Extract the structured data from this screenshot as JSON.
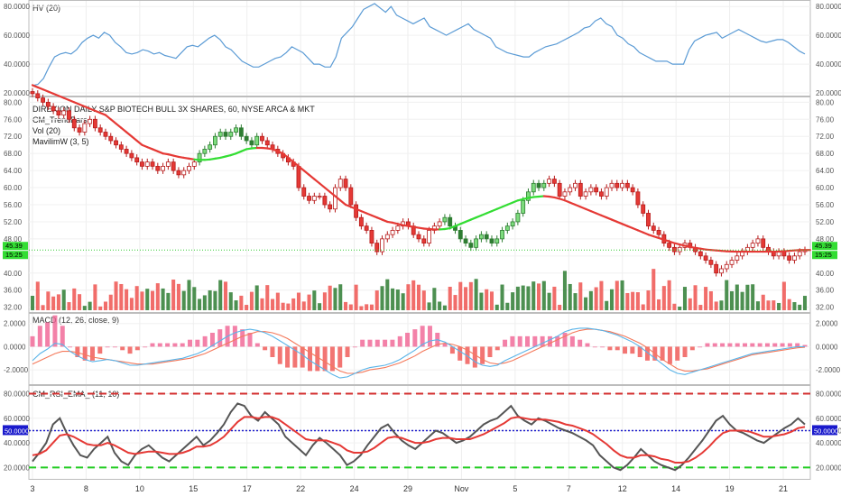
{
  "chart_data": [
    {
      "type": "line",
      "panel": "hv",
      "title": "HV (20)",
      "y_ticks": [
        "80.0000",
        "60.0000",
        "40.0000",
        "20.0000"
      ],
      "y_tick_values": [
        80,
        60,
        40,
        20
      ],
      "ylim": [
        20,
        82
      ],
      "colors": {
        "line": "#5b9bd5"
      },
      "series": [
        {
          "values": [
            25,
            26,
            30,
            38,
            45,
            47,
            48,
            47,
            50,
            55,
            58,
            60,
            58,
            62,
            60,
            55,
            52,
            48,
            47,
            48,
            50,
            49,
            47,
            48,
            46,
            45,
            44,
            48,
            52,
            53,
            52,
            55,
            58,
            60,
            57,
            52,
            50,
            46,
            42,
            40,
            38,
            38,
            40,
            42,
            44,
            45,
            48,
            52,
            50,
            48,
            44,
            40,
            40,
            38,
            38,
            45,
            58,
            62,
            66,
            72,
            78,
            80,
            82,
            79,
            76,
            80,
            74,
            72,
            70,
            68,
            70,
            72,
            66,
            64,
            62,
            60,
            62,
            64,
            66,
            68,
            64,
            62,
            60,
            58,
            52,
            50,
            48,
            47,
            46,
            45,
            45,
            48,
            50,
            52,
            53,
            54,
            56,
            58,
            60,
            62,
            65,
            66,
            70,
            72,
            68,
            66,
            60,
            58,
            54,
            52,
            48,
            46,
            44,
            42,
            42,
            42,
            40,
            40,
            40,
            50,
            56,
            58,
            60,
            61,
            62,
            58,
            60,
            62,
            64,
            62,
            60,
            58,
            56,
            55,
            56,
            57,
            57,
            55,
            52,
            49,
            47
          ]
        }
      ]
    },
    {
      "type": "candlestick",
      "panel": "price",
      "title": "DIREXION DAILY S&P BIOTECH BULL 3X SHARES, 60, NYSE ARCA & MKT",
      "indicators": [
        "CM_TrendBars",
        "Vol (20)",
        "MavilimW (3, 5)"
      ],
      "y_ticks": [
        "80.00",
        "76.00",
        "72.00",
        "68.00",
        "64.00",
        "60.00",
        "56.00",
        "52.00",
        "48.00",
        "44.00",
        "40.00",
        "36.00",
        "32.00"
      ],
      "y_tick_values": [
        80,
        76,
        72,
        68,
        64,
        60,
        56,
        52,
        48,
        44,
        40,
        36,
        32
      ],
      "ylim": [
        31.5,
        80.5
      ],
      "price_badge": {
        "value": "45.39",
        "time": "15:25",
        "y": 45.39
      },
      "colors": {
        "up": "#2e7d32",
        "down": "#e53935",
        "ma_up": "#33dd33",
        "ma_down": "#e53935",
        "vol_up": "#2e7d32",
        "vol_down": "#ef5350"
      },
      "close": [
        82,
        81,
        80,
        79,
        78,
        77,
        78,
        76,
        74,
        73,
        75,
        76,
        74,
        73,
        72,
        71,
        70,
        69,
        68,
        67,
        66,
        65,
        66,
        65,
        64,
        65,
        66,
        64,
        63,
        64,
        65,
        66,
        68,
        69,
        70,
        72,
        73,
        72,
        73,
        74,
        72,
        71,
        70,
        72,
        71,
        70,
        69,
        68,
        67,
        66,
        65,
        60,
        58,
        57,
        58,
        58,
        56,
        55,
        60,
        62,
        60,
        56,
        53,
        51,
        50,
        47,
        45,
        48,
        49,
        50,
        51,
        52,
        51,
        49,
        48,
        47,
        50,
        51,
        52,
        53,
        51,
        50,
        48,
        47,
        46,
        48,
        49,
        48,
        47,
        48,
        50,
        51,
        52,
        54,
        57,
        59,
        61,
        60,
        61,
        62,
        61,
        58,
        59,
        60,
        61,
        58,
        59,
        60,
        59,
        58,
        60,
        61,
        60,
        61,
        60,
        59,
        56,
        54,
        51,
        50,
        49,
        47,
        46,
        45,
        46,
        47,
        46,
        45,
        44,
        43,
        42,
        40,
        41,
        42,
        43,
        44,
        45,
        46,
        47,
        48,
        46,
        45,
        44,
        45,
        44,
        43,
        44,
        45,
        45.39
      ],
      "ma": [
        84,
        83.5,
        83,
        82.5,
        82,
        81.5,
        81,
        80.5,
        80,
        79.5,
        79,
        78.5,
        78,
        77.5,
        77,
        76,
        75,
        74,
        73,
        72,
        71,
        70,
        69.5,
        69,
        68.5,
        68,
        67.8,
        67.5,
        67.2,
        67,
        66.8,
        66.6,
        66.5,
        66.5,
        66.6,
        66.8,
        67,
        67.3,
        67.6,
        68,
        68.5,
        69,
        69.2,
        69.3,
        69.3,
        69.2,
        69,
        68.5,
        68,
        67,
        66,
        65,
        64,
        63,
        62,
        61,
        60,
        59,
        58,
        57,
        56,
        55.5,
        55,
        54.5,
        54,
        53.5,
        53,
        52.5,
        52,
        51.8,
        51.5,
        51.2,
        51,
        50.8,
        50.6,
        50.4,
        50.3,
        50.2,
        50.2,
        50.3,
        50.5,
        51,
        51.5,
        52,
        52.5,
        53,
        53.5,
        54,
        54.5,
        55,
        55.5,
        56,
        56.5,
        57,
        57.3,
        57.6,
        57.8,
        57.9,
        58,
        57.9,
        57.7,
        57.4,
        57,
        56.5,
        56,
        55.5,
        55,
        54.5,
        54,
        53.5,
        53,
        52.5,
        52,
        51.5,
        51,
        50.5,
        50,
        49.5,
        49,
        48.6,
        48.2,
        47.8,
        47.4,
        47,
        46.7,
        46.4,
        46.1,
        45.9,
        45.7,
        45.5,
        45.4,
        45.3,
        45.2,
        45.1,
        45.05,
        45,
        45,
        45,
        45,
        45,
        45,
        45,
        45,
        45.05,
        45.1,
        45.2,
        45.3,
        45.39,
        45.39,
        45.39
      ],
      "ma_trend": [
        "d",
        "d",
        "d",
        "d",
        "d",
        "d",
        "d",
        "d",
        "d",
        "d",
        "d",
        "d",
        "d",
        "d",
        "d",
        "d",
        "d",
        "d",
        "d",
        "d",
        "d",
        "d",
        "d",
        "d",
        "d",
        "d",
        "d",
        "d",
        "d",
        "d",
        "d",
        "d",
        "u",
        "u",
        "u",
        "u",
        "u",
        "u",
        "u",
        "u",
        "u",
        "u",
        "u",
        "u",
        "d",
        "d",
        "d",
        "d",
        "d",
        "d",
        "d",
        "d",
        "d",
        "d",
        "d",
        "d",
        "d",
        "d",
        "d",
        "d",
        "d",
        "d",
        "d",
        "d",
        "d",
        "d",
        "d",
        "d",
        "d",
        "d",
        "d",
        "d",
        "d",
        "d",
        "d",
        "d",
        "d",
        "d",
        "d",
        "u",
        "u",
        "u",
        "u",
        "u",
        "u",
        "u",
        "u",
        "u",
        "u",
        "u",
        "u",
        "u",
        "u",
        "u",
        "u",
        "u",
        "u",
        "u",
        "u",
        "d",
        "d",
        "d",
        "d",
        "d",
        "d",
        "d",
        "d",
        "d",
        "d",
        "d",
        "d",
        "d",
        "d",
        "d",
        "d",
        "d",
        "d",
        "d",
        "d",
        "d",
        "d",
        "d",
        "d",
        "d",
        "d",
        "d",
        "d",
        "d",
        "d",
        "d",
        "d",
        "d",
        "d",
        "d",
        "d",
        "d",
        "d",
        "d",
        "d",
        "d",
        "d",
        "d",
        "d",
        "d",
        "d",
        "d",
        "d",
        "d",
        "d"
      ],
      "volume_max": 100
    },
    {
      "type": "histogram+line",
      "panel": "macd",
      "title": "MACD (12, 26, close, 9)",
      "y_ticks": [
        "2.0000",
        "0.0000",
        "-2.0000"
      ],
      "y_tick_values": [
        2,
        0,
        -2
      ],
      "ylim": [
        -3,
        2.6
      ],
      "colors": {
        "macd": "#5ab4e8",
        "signal": "#f4795b",
        "hist_pos": "#f06292",
        "hist_neg": "#ef5350"
      },
      "series": [
        {
          "values": [
            -1.2,
            -0.6,
            -0.2,
            0.3,
            0.2,
            -0.4,
            -0.8,
            -1.1,
            -1.3,
            -1.2,
            -1.1,
            -1.2,
            -1.4,
            -1.6,
            -1.6,
            -1.5,
            -1.4,
            -1.3,
            -1.2,
            -1.1,
            -1.0,
            -0.8,
            -0.6,
            -0.3,
            0.1,
            0.5,
            0.9,
            1.2,
            1.4,
            1.5,
            1.4,
            1.2,
            0.9,
            0.5,
            0.1,
            -0.3,
            -0.7,
            -1.2,
            -1.6,
            -2.0,
            -2.4,
            -2.7,
            -2.6,
            -2.3,
            -2.0,
            -1.8,
            -1.7,
            -1.6,
            -1.4,
            -1.1,
            -0.7,
            -0.3,
            0.2,
            0.5,
            0.6,
            0.4,
            0.0,
            -0.4,
            -0.8,
            -1.3,
            -1.6,
            -1.7,
            -1.6,
            -1.2,
            -0.9,
            -0.6,
            -0.3,
            0.0,
            0.3,
            0.6,
            0.9,
            1.3,
            1.5,
            1.6,
            1.6,
            1.5,
            1.4,
            1.2,
            1.0,
            0.7,
            0.4,
            0.0,
            -0.5,
            -1.0,
            -1.5,
            -2.0,
            -2.3,
            -2.4,
            -2.2,
            -2.0,
            -1.8,
            -1.6,
            -1.4,
            -1.2,
            -1.0,
            -0.8,
            -0.6,
            -0.5,
            -0.4,
            -0.3,
            -0.2,
            -0.1,
            0.0,
            0.0
          ]
        },
        {
          "values": [
            -1.5,
            -1.2,
            -0.9,
            -0.6,
            -0.4,
            -0.4,
            -0.5,
            -0.7,
            -0.9,
            -1.0,
            -1.1,
            -1.2,
            -1.3,
            -1.4,
            -1.5,
            -1.5,
            -1.5,
            -1.4,
            -1.3,
            -1.2,
            -1.1,
            -1.0,
            -0.8,
            -0.6,
            -0.3,
            0.0,
            0.3,
            0.6,
            0.9,
            1.1,
            1.3,
            1.3,
            1.2,
            1.0,
            0.7,
            0.3,
            -0.1,
            -0.5,
            -0.9,
            -1.3,
            -1.7,
            -2.1,
            -2.3,
            -2.3,
            -2.2,
            -2.0,
            -1.9,
            -1.8,
            -1.6,
            -1.4,
            -1.1,
            -0.8,
            -0.4,
            -0.1,
            0.2,
            0.3,
            0.2,
            0.0,
            -0.3,
            -0.7,
            -1.1,
            -1.4,
            -1.5,
            -1.4,
            -1.2,
            -0.9,
            -0.6,
            -0.3,
            0.0,
            0.3,
            0.6,
            0.9,
            1.2,
            1.4,
            1.5,
            1.5,
            1.4,
            1.3,
            1.1,
            0.9,
            0.6,
            0.3,
            -0.1,
            -0.6,
            -1.1,
            -1.5,
            -1.9,
            -2.1,
            -2.1,
            -2.0,
            -1.9,
            -1.7,
            -1.5,
            -1.3,
            -1.1,
            -0.9,
            -0.7,
            -0.6,
            -0.5,
            -0.4,
            -0.3,
            -0.2,
            -0.1,
            -0.05
          ]
        }
      ]
    },
    {
      "type": "line",
      "panel": "rsi",
      "title": "CM_RSI_EMA_ (11, 10)",
      "y_ticks": [
        "80.0000",
        "60.0000",
        "50.0000",
        "40.0000",
        "20.0000"
      ],
      "y_tick_values": [
        80,
        60,
        50,
        40,
        20
      ],
      "ylim": [
        13,
        84
      ],
      "levels": [
        80,
        50,
        20
      ],
      "colors": {
        "rsi": "#555555",
        "ema": "#e53935",
        "upper": "#d32f2f",
        "mid": "#1a1acc",
        "lower": "#22cc22"
      },
      "series": [
        {
          "values": [
            25,
            32,
            40,
            55,
            60,
            48,
            38,
            30,
            28,
            35,
            40,
            45,
            32,
            25,
            22,
            30,
            35,
            38,
            33,
            28,
            25,
            30,
            35,
            40,
            45,
            38,
            42,
            48,
            55,
            65,
            72,
            70,
            62,
            58,
            65,
            60,
            55,
            45,
            40,
            35,
            30,
            38,
            44,
            40,
            35,
            30,
            22,
            25,
            30,
            38,
            45,
            52,
            55,
            48,
            42,
            38,
            35,
            40,
            45,
            50,
            48,
            44,
            40,
            42,
            45,
            50,
            55,
            58,
            60,
            65,
            70,
            62,
            58,
            55,
            60,
            58,
            55,
            52,
            50,
            48,
            45,
            42,
            38,
            30,
            25,
            20,
            18,
            22,
            28,
            35,
            30,
            25,
            22,
            20,
            18,
            22,
            28,
            35,
            42,
            50,
            58,
            62,
            55,
            50,
            48,
            45,
            42,
            40,
            44,
            48,
            52,
            55,
            60,
            55
          ]
        },
        {
          "values": [
            30,
            31,
            34,
            40,
            46,
            47,
            45,
            42,
            39,
            38,
            38,
            40,
            38,
            35,
            32,
            31,
            32,
            33,
            33,
            32,
            31,
            31,
            32,
            34,
            37,
            37,
            38,
            41,
            45,
            51,
            57,
            61,
            61,
            60,
            61,
            61,
            59,
            55,
            51,
            47,
            43,
            42,
            42,
            42,
            40,
            38,
            34,
            32,
            32,
            33,
            36,
            40,
            44,
            45,
            44,
            42,
            40,
            40,
            41,
            43,
            44,
            44,
            43,
            43,
            43,
            45,
            47,
            50,
            53,
            56,
            60,
            61,
            60,
            59,
            59,
            59,
            58,
            57,
            55,
            54,
            52,
            50,
            47,
            43,
            39,
            34,
            30,
            28,
            28,
            30,
            30,
            29,
            27,
            26,
            24,
            24,
            25,
            28,
            32,
            37,
            43,
            48,
            50,
            50,
            50,
            49,
            47,
            45,
            45,
            46,
            47,
            49,
            52,
            53
          ]
        }
      ]
    }
  ],
  "x_axis": {
    "labels": [
      "3",
      "8",
      "10",
      "15",
      "17",
      "22",
      "24",
      "29",
      "Nov",
      "5",
      "7",
      "12",
      "14",
      "19",
      "21"
    ]
  }
}
